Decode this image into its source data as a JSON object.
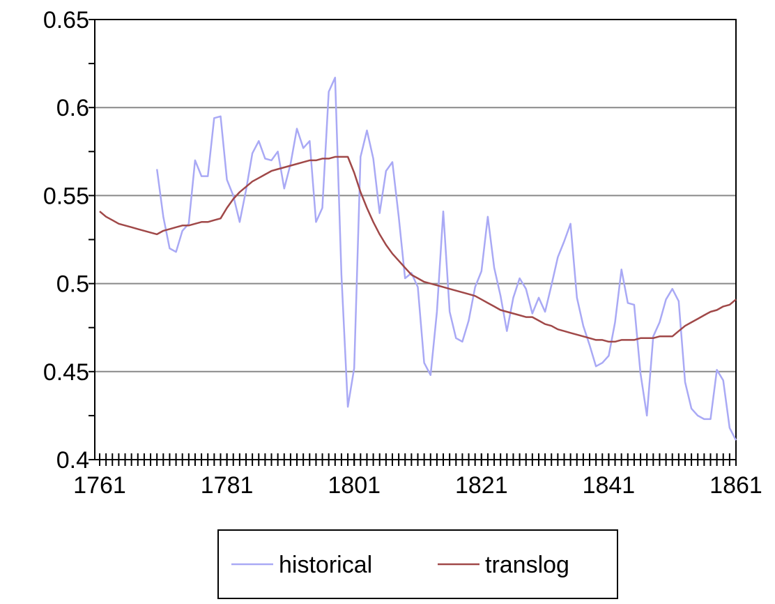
{
  "chart_data": {
    "type": "line",
    "x": [
      1761,
      1762,
      1763,
      1764,
      1765,
      1766,
      1767,
      1768,
      1769,
      1770,
      1771,
      1772,
      1773,
      1774,
      1775,
      1776,
      1777,
      1778,
      1779,
      1780,
      1781,
      1782,
      1783,
      1784,
      1785,
      1786,
      1787,
      1788,
      1789,
      1790,
      1791,
      1792,
      1793,
      1794,
      1795,
      1796,
      1797,
      1798,
      1799,
      1800,
      1801,
      1802,
      1803,
      1804,
      1805,
      1806,
      1807,
      1808,
      1809,
      1810,
      1811,
      1812,
      1813,
      1814,
      1815,
      1816,
      1817,
      1818,
      1819,
      1820,
      1821,
      1822,
      1823,
      1824,
      1825,
      1826,
      1827,
      1828,
      1829,
      1830,
      1831,
      1832,
      1833,
      1834,
      1835,
      1836,
      1837,
      1838,
      1839,
      1840,
      1841,
      1842,
      1843,
      1844,
      1845,
      1846,
      1847,
      1848,
      1849,
      1850,
      1851,
      1852,
      1853,
      1854,
      1855,
      1856,
      1857,
      1858,
      1859,
      1860,
      1861
    ],
    "series": [
      {
        "name": "historical",
        "color": "#a9a9f5",
        "values": [
          null,
          null,
          null,
          null,
          null,
          null,
          null,
          null,
          null,
          0.565,
          0.538,
          0.52,
          0.518,
          0.53,
          0.534,
          0.57,
          0.561,
          0.561,
          0.594,
          0.595,
          0.559,
          0.55,
          0.535,
          0.553,
          0.574,
          0.581,
          0.571,
          0.57,
          0.575,
          0.554,
          0.568,
          0.588,
          0.577,
          0.581,
          0.535,
          0.543,
          0.609,
          0.617,
          0.505,
          0.43,
          0.452,
          0.572,
          0.587,
          0.571,
          0.54,
          0.564,
          0.569,
          0.538,
          0.503,
          0.506,
          0.498,
          0.455,
          0.448,
          0.484,
          0.541,
          0.484,
          0.469,
          0.467,
          0.479,
          0.498,
          0.507,
          0.538,
          0.509,
          0.493,
          0.473,
          0.492,
          0.503,
          0.497,
          0.483,
          0.492,
          0.484,
          0.499,
          0.515,
          0.524,
          0.534,
          0.492,
          0.476,
          0.465,
          0.453,
          0.455,
          0.459,
          0.478,
          0.508,
          0.489,
          0.488,
          0.449,
          0.425,
          0.47,
          0.478,
          0.491,
          0.497,
          0.49,
          0.444,
          0.429,
          0.425,
          0.423,
          0.423,
          0.451,
          0.445,
          0.418,
          0.411
        ]
      },
      {
        "name": "translog",
        "color": "#a04848",
        "values": [
          0.541,
          0.538,
          0.536,
          0.534,
          0.533,
          0.532,
          0.531,
          0.53,
          0.529,
          0.528,
          0.53,
          0.531,
          0.532,
          0.533,
          0.533,
          0.534,
          0.535,
          0.535,
          0.536,
          0.537,
          0.543,
          0.548,
          0.552,
          0.555,
          0.558,
          0.56,
          0.562,
          0.564,
          0.565,
          0.566,
          0.567,
          0.568,
          0.569,
          0.57,
          0.57,
          0.571,
          0.571,
          0.572,
          0.572,
          0.572,
          0.563,
          0.552,
          0.543,
          0.535,
          0.528,
          0.522,
          0.517,
          0.513,
          0.509,
          0.505,
          0.503,
          0.501,
          0.5,
          0.499,
          0.498,
          0.497,
          0.496,
          0.495,
          0.494,
          0.493,
          0.491,
          0.489,
          0.487,
          0.485,
          0.484,
          0.483,
          0.482,
          0.481,
          0.481,
          0.479,
          0.477,
          0.476,
          0.474,
          0.473,
          0.472,
          0.471,
          0.47,
          0.469,
          0.468,
          0.468,
          0.467,
          0.467,
          0.468,
          0.468,
          0.468,
          0.469,
          0.469,
          0.469,
          0.47,
          0.47,
          0.47,
          0.473,
          0.476,
          0.478,
          0.48,
          0.482,
          0.484,
          0.485,
          0.487,
          0.488,
          0.491
        ]
      }
    ],
    "xlim": [
      1761,
      1861
    ],
    "xticks": [
      1761,
      1781,
      1801,
      1821,
      1841,
      1861
    ],
    "ylim": [
      0.4,
      0.65
    ],
    "yticks": [
      0.4,
      0.45,
      0.5,
      0.55,
      0.6,
      0.65
    ],
    "grid": true,
    "legend": "bottom"
  }
}
